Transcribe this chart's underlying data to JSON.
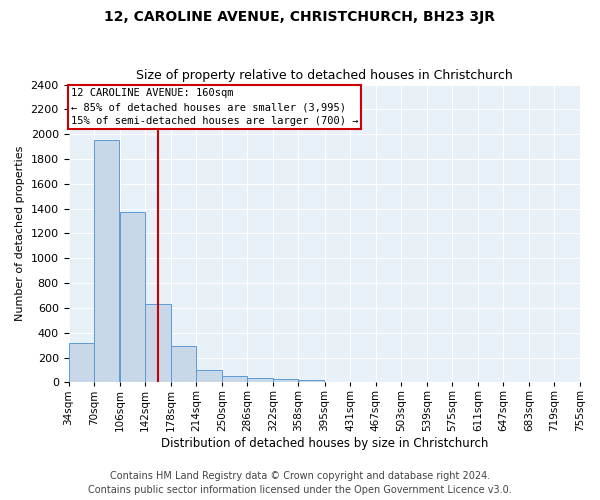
{
  "title": "12, CAROLINE AVENUE, CHRISTCHURCH, BH23 3JR",
  "subtitle": "Size of property relative to detached houses in Christchurch",
  "xlabel": "Distribution of detached houses by size in Christchurch",
  "ylabel": "Number of detached properties",
  "bin_edges": [
    34,
    70,
    106,
    142,
    178,
    214,
    250,
    286,
    322,
    358,
    395,
    431,
    467,
    503,
    539,
    575,
    611,
    647,
    683,
    719,
    755
  ],
  "bar_heights": [
    320,
    1950,
    1370,
    630,
    290,
    100,
    50,
    35,
    30,
    20,
    0,
    0,
    0,
    0,
    0,
    0,
    0,
    0,
    0,
    0
  ],
  "bar_color": "#c8d8e8",
  "bar_edge_color": "#5b9bd5",
  "red_line_x": 160,
  "annotation_line1": "12 CAROLINE AVENUE: 160sqm",
  "annotation_line2": "← 85% of detached houses are smaller (3,995)",
  "annotation_line3": "15% of semi-detached houses are larger (700) →",
  "annotation_box_color": "#cc0000",
  "annotation_text_fontsize": 7.5,
  "ylim": [
    0,
    2400
  ],
  "yticks": [
    0,
    200,
    400,
    600,
    800,
    1000,
    1200,
    1400,
    1600,
    1800,
    2000,
    2200,
    2400
  ],
  "footer_line1": "Contains HM Land Registry data © Crown copyright and database right 2024.",
  "footer_line2": "Contains public sector information licensed under the Open Government Licence v3.0.",
  "background_color": "#e8f0f8",
  "title_fontsize": 10,
  "subtitle_fontsize": 9,
  "footer_fontsize": 7
}
